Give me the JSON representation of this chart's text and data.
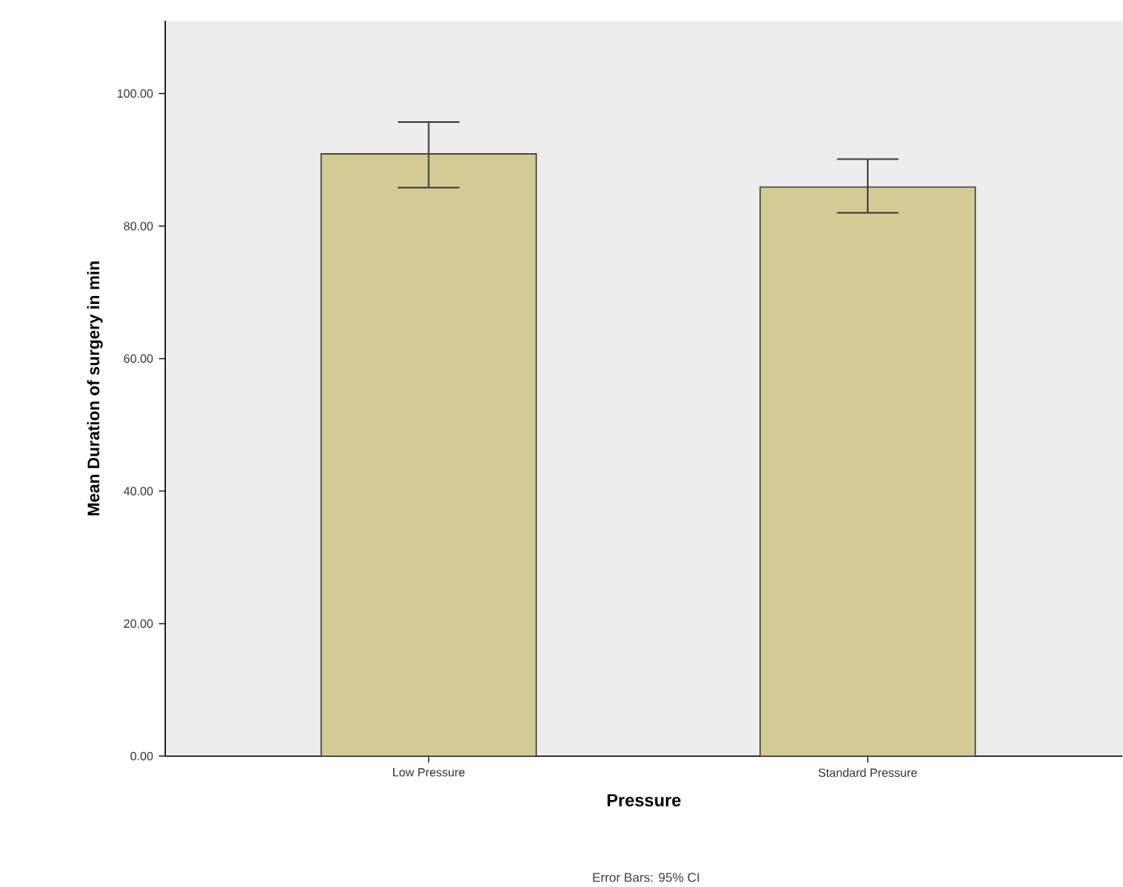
{
  "chart_data": {
    "type": "bar",
    "xlabel": "Pressure",
    "ylabel": "Mean Duration of surgery in min",
    "categories": [
      "Low Pressure",
      "Standard Pressure"
    ],
    "values": [
      90.9,
      85.9
    ],
    "errors": [
      [
        85.8,
        95.7
      ],
      [
        82.0,
        90.1
      ]
    ],
    "color": "#d2cc94",
    "ylim": [
      0,
      111
    ],
    "yticks": [
      {
        "value": 0,
        "label": "0.00"
      },
      {
        "value": 20,
        "label": "20.00"
      },
      {
        "value": 40,
        "label": "40.00"
      },
      {
        "value": 60,
        "label": "60.00"
      },
      {
        "value": 80,
        "label": "80.00"
      },
      {
        "value": 100,
        "label": "100.00"
      }
    ],
    "grid": false,
    "annotations": [
      "Error Bars: 95% CI"
    ]
  }
}
